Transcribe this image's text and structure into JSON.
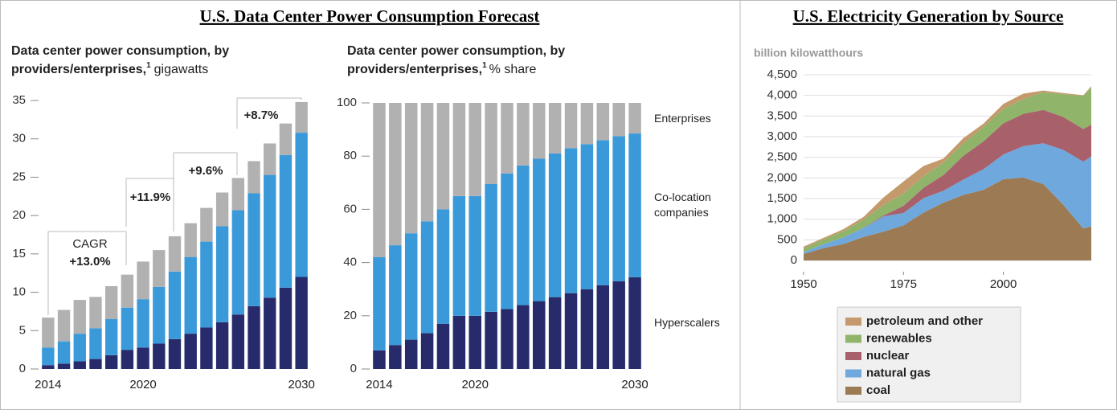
{
  "panel_titles": [
    "U.S. Data Center Power Consumption Forecast",
    "U.S. Electricity Generation by Source"
  ],
  "chart_data": [
    {
      "type": "stacked_bar",
      "subtitle": [
        "Data center power consumption, by",
        "providers/enterprises,"
      ],
      "footnote": "1",
      "unit": "gigawatts",
      "categories": [
        "2014",
        null,
        null,
        null,
        null,
        null,
        "2020",
        null,
        null,
        null,
        null,
        null,
        null,
        null,
        null,
        null,
        "2030"
      ],
      "series": [
        {
          "color": "#272b6b",
          "values": [
            0.5,
            0.7,
            1.0,
            1.3,
            1.8,
            2.5,
            2.8,
            3.3,
            3.9,
            4.6,
            5.4,
            6.1,
            7.1,
            8.2,
            9.3,
            10.6,
            12.0
          ]
        },
        {
          "color": "#3a9ad9",
          "values": [
            2.3,
            2.9,
            3.6,
            4.0,
            4.7,
            5.5,
            6.3,
            7.4,
            8.8,
            10.0,
            11.2,
            12.5,
            13.6,
            14.7,
            16.0,
            17.3,
            18.8
          ]
        },
        {
          "color": "#b1b1b1",
          "values": [
            3.9,
            4.1,
            4.4,
            4.1,
            4.3,
            4.3,
            4.9,
            4.8,
            4.6,
            4.4,
            4.4,
            4.4,
            4.2,
            4.2,
            4.1,
            4.1,
            4.0
          ]
        }
      ],
      "ylim": [
        0,
        35
      ],
      "yticks": [
        0,
        5,
        10,
        15,
        20,
        25,
        30,
        35
      ],
      "annotations": [
        "CAGR",
        "+13.0%",
        "+11.9%",
        "+9.6%",
        "+8.7%"
      ]
    },
    {
      "type": "stacked_bar",
      "subtitle": [
        "Data center power consumption, by",
        "providers/enterprises,"
      ],
      "footnote": "1",
      "unit": "% share",
      "categories": [
        "2014",
        null,
        null,
        null,
        null,
        null,
        "2020",
        null,
        null,
        null,
        null,
        null,
        null,
        null,
        null,
        null,
        "2030"
      ],
      "series": [
        {
          "name": "Hyperscalers",
          "color": "#272b6b",
          "values": [
            7,
            9,
            11,
            13.5,
            17,
            20,
            20,
            21.5,
            22.5,
            24,
            25.5,
            27,
            28.5,
            30,
            31.5,
            33,
            34.5
          ]
        },
        {
          "name": "Co-location companies",
          "color": "#3a9ad9",
          "values": [
            35,
            37.5,
            40,
            42,
            43,
            45,
            45,
            48,
            51,
            52.5,
            53.5,
            54,
            54.5,
            54.5,
            54.5,
            54.5,
            54
          ]
        },
        {
          "name": "Enterprises",
          "color": "#b1b1b1",
          "values": [
            58,
            53.5,
            49,
            44.5,
            40,
            35,
            35,
            30.5,
            26.5,
            23.5,
            21,
            19,
            17,
            15.5,
            14,
            12.5,
            11.5
          ]
        }
      ],
      "ylim": [
        0,
        100
      ],
      "yticks": [
        0,
        20,
        40,
        60,
        80,
        100
      ]
    },
    {
      "type": "stacked_area",
      "ylabel": "billion kilowatthours",
      "x": [
        1950,
        1955,
        1960,
        1965,
        1970,
        1975,
        1980,
        1985,
        1990,
        1995,
        2000,
        2005,
        2010,
        2015,
        2020,
        2022
      ],
      "series": [
        {
          "name": "petroleum and other",
          "color": "#c49a6c",
          "values": [
            35,
            37,
            48,
            65,
            185,
            290,
            250,
            100,
            130,
            80,
            120,
            130,
            40,
            30,
            20,
            30
          ]
        },
        {
          "name": "renewables",
          "color": "#8fb46a",
          "values": [
            100,
            115,
            150,
            195,
            250,
            300,
            280,
            300,
            300,
            350,
            350,
            360,
            430,
            550,
            800,
            900
          ]
        },
        {
          "name": "nuclear",
          "color": "#a8606a",
          "values": [
            0,
            0,
            1,
            4,
            22,
            173,
            250,
            380,
            577,
            673,
            754,
            782,
            807,
            797,
            790,
            772
          ]
        },
        {
          "name": "natural gas",
          "color": "#6fa8dc",
          "values": [
            45,
            95,
            160,
            220,
            370,
            300,
            350,
            290,
            370,
            500,
            600,
            760,
            990,
            1330,
            1620,
            1690
          ]
        },
        {
          "name": "coal",
          "color": "#9c7a54",
          "values": [
            155,
            300,
            400,
            570,
            700,
            850,
            1160,
            1400,
            1590,
            1710,
            1970,
            2010,
            1850,
            1350,
            774,
            830
          ]
        }
      ],
      "xlim": [
        1950,
        2022
      ],
      "xticks": [
        1950,
        1975,
        2000
      ],
      "ylim": [
        0,
        4500
      ],
      "yticks": [
        0,
        500,
        {
          "value": 1000,
          "label": "1,000"
        },
        {
          "value": 1500,
          "label": "1,500"
        },
        {
          "value": 2000,
          "label": "2,000"
        },
        {
          "value": 2500,
          "label": "2,500"
        },
        {
          "value": 3000,
          "label": "3,000"
        },
        {
          "value": 3500,
          "label": "3,500"
        },
        {
          "value": 4000,
          "label": "4,000"
        },
        {
          "value": 4500,
          "label": "4,500"
        }
      ],
      "grid": true
    }
  ]
}
